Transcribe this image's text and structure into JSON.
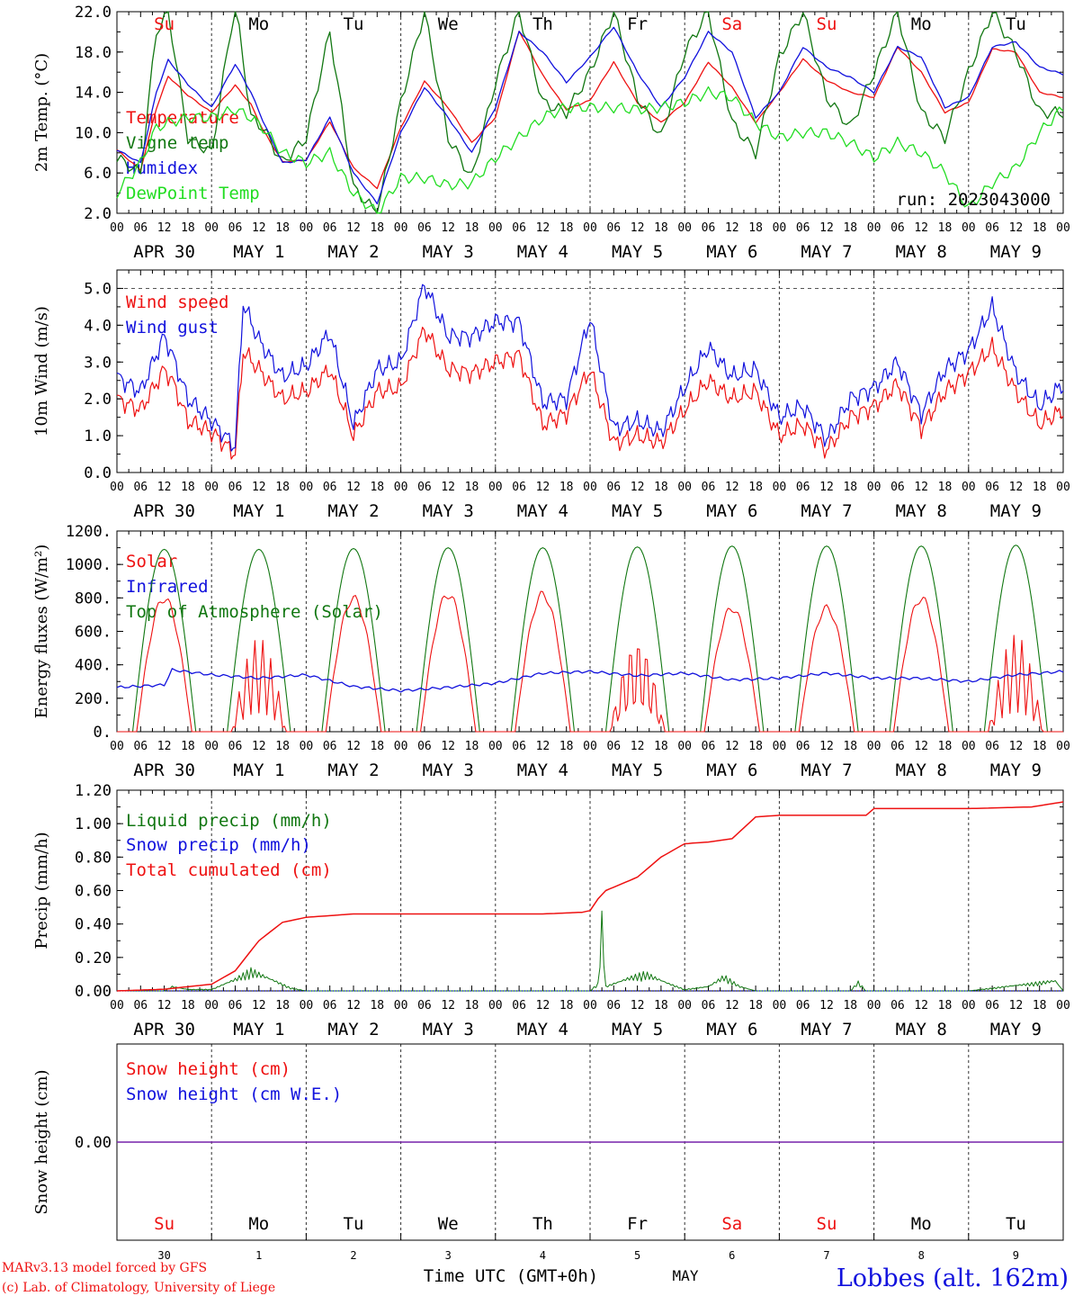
{
  "colors": {
    "temperature": "#ee1111",
    "vigne": "#117711",
    "humidex": "#1111dd",
    "dewpoint": "#22dd22",
    "wind_speed": "#ee1111",
    "wind_gust": "#1111dd",
    "solar": "#ee1111",
    "infrared": "#1111dd",
    "toa": "#117711",
    "liquid": "#117711",
    "snow": "#1111dd",
    "cumulated": "#ee1111",
    "snow_height": "#ee1111",
    "snow_we": "#1111dd",
    "snow_line": "#7722aa",
    "weekend": "#ee1111",
    "weekday": "#000000"
  },
  "run_label": "run: 2023043000",
  "hour_ticks": [
    "00",
    "06",
    "12",
    "18"
  ],
  "date_labels": [
    "APR 30",
    "MAY  1",
    "MAY  2",
    "MAY  3",
    "MAY  4",
    "MAY  5",
    "MAY  6",
    "MAY  7",
    "MAY  8",
    "MAY  9"
  ],
  "weekdays": [
    {
      "label": "Su",
      "weekend": true
    },
    {
      "label": "Mo",
      "weekend": false
    },
    {
      "label": "Tu",
      "weekend": false
    },
    {
      "label": "We",
      "weekend": false
    },
    {
      "label": "Th",
      "weekend": false
    },
    {
      "label": "Fr",
      "weekend": false
    },
    {
      "label": "Sa",
      "weekend": true
    },
    {
      "label": "Su",
      "weekend": true
    },
    {
      "label": "Mo",
      "weekend": false
    },
    {
      "label": "Tu",
      "weekend": false
    }
  ],
  "day_numbers": [
    "30",
    "1",
    "2",
    "3",
    "4",
    "5",
    "6",
    "7",
    "8",
    "9"
  ],
  "month_label": "MAY",
  "xaxis_title": "Time UTC (GMT+0h)",
  "credit_line1": "MARv3.13 model forced by GFS",
  "credit_line2": "(c) Lab. of Climatology, University of Liege",
  "station_label": "Lobbes (alt. 162m)",
  "chart_data": [
    {
      "type": "line",
      "ylabel": "2m Temp. (°C)",
      "ylim": [
        2,
        22
      ],
      "yticks": [
        "2.0",
        "6.0",
        "10.0",
        "14.0",
        "18.0",
        "22.0"
      ],
      "legend_placement": "top-left",
      "x_unit": "hours since 2023-04-30 00 UTC",
      "series": [
        {
          "name": "Temperature",
          "key": "temperature",
          "x": [
            0,
            6,
            10,
            13,
            18,
            24,
            30,
            34,
            37,
            42,
            48,
            54,
            60,
            66,
            72,
            78,
            84,
            90,
            96,
            102,
            108,
            114,
            120,
            126,
            132,
            138,
            144,
            150,
            156,
            162,
            168,
            174,
            180,
            186,
            192,
            198,
            204,
            210,
            216,
            222,
            228,
            234,
            240
          ],
          "values": [
            8.3,
            6.3,
            12.4,
            15.6,
            13.7,
            12.0,
            14.7,
            12.8,
            10.3,
            7.1,
            7.3,
            11.1,
            6.5,
            4.5,
            10.5,
            15.1,
            12.5,
            9.0,
            11.5,
            20.1,
            15.7,
            12.3,
            13.2,
            17.0,
            13.0,
            11.0,
            13.0,
            17.0,
            14.5,
            11.0,
            14.0,
            17.3,
            15.2,
            14.0,
            13.5,
            18.5,
            16.0,
            12.0,
            13.0,
            18.3,
            18.0,
            14.0,
            13.5
          ]
        },
        {
          "name": "Vigne temp",
          "key": "vigne",
          "x": [
            0,
            6,
            10,
            13,
            18,
            24,
            30,
            34,
            37,
            42,
            48,
            54,
            60,
            66,
            72,
            78,
            84,
            90,
            96,
            102,
            108,
            114,
            120,
            126,
            132,
            138,
            144,
            150,
            156,
            162,
            168,
            174,
            180,
            186,
            192,
            198,
            204,
            210,
            216,
            222,
            228,
            234,
            240
          ],
          "values": [
            7.5,
            6.0,
            20.0,
            22.0,
            9.5,
            8.0,
            23.0,
            11.5,
            10.5,
            7.0,
            9.5,
            20.0,
            4.5,
            2.0,
            13.0,
            22.0,
            9.5,
            5.5,
            15.0,
            22.0,
            13.0,
            12.0,
            16.0,
            22.0,
            13.5,
            9.5,
            18.0,
            22.0,
            11.0,
            8.0,
            17.5,
            22.0,
            13.5,
            10.5,
            16.0,
            22.0,
            12.0,
            9.5,
            16.0,
            22.0,
            18.0,
            12.0,
            12.0
          ]
        },
        {
          "name": "Humidex",
          "key": "humidex",
          "x": [
            0,
            6,
            10,
            13,
            18,
            24,
            30,
            34,
            37,
            42,
            48,
            54,
            60,
            66,
            72,
            78,
            84,
            90,
            96,
            102,
            108,
            114,
            120,
            126,
            132,
            138,
            144,
            150,
            156,
            162,
            168,
            174,
            180,
            186,
            192,
            198,
            204,
            210,
            216,
            222,
            228,
            234,
            240
          ],
          "values": [
            8.3,
            7.0,
            14.0,
            17.2,
            14.8,
            12.5,
            16.8,
            14.0,
            11.2,
            7.0,
            7.3,
            11.5,
            6.0,
            3.0,
            10.0,
            14.5,
            11.5,
            8.0,
            12.5,
            20.0,
            18.0,
            15.0,
            17.5,
            20.5,
            16.0,
            12.5,
            15.5,
            20.0,
            18.0,
            11.5,
            14.0,
            18.5,
            16.5,
            15.5,
            14.0,
            18.5,
            17.5,
            12.5,
            13.5,
            18.5,
            19.0,
            16.5,
            15.8
          ]
        },
        {
          "name": "DewPoint Temp",
          "key": "dewpoint",
          "x": [
            0,
            6,
            10,
            13,
            18,
            24,
            30,
            34,
            37,
            42,
            48,
            54,
            60,
            66,
            72,
            78,
            84,
            90,
            96,
            102,
            108,
            114,
            120,
            126,
            132,
            138,
            144,
            150,
            156,
            162,
            168,
            174,
            180,
            186,
            192,
            198,
            204,
            210,
            216,
            222,
            228,
            234,
            240
          ],
          "values": [
            4.0,
            7.0,
            10.5,
            11.0,
            11.5,
            11.5,
            12.3,
            11.5,
            10.5,
            8.0,
            7.0,
            8.0,
            4.0,
            2.0,
            5.5,
            5.5,
            4.8,
            5.0,
            7.5,
            9.5,
            11.5,
            12.5,
            12.5,
            12.5,
            12.3,
            12.5,
            13.0,
            14.0,
            13.5,
            11.0,
            9.5,
            10.0,
            10.0,
            9.0,
            7.5,
            9.0,
            8.0,
            6.0,
            2.5,
            5.0,
            6.5,
            10.0,
            12.5
          ]
        }
      ]
    },
    {
      "type": "line",
      "ylabel": "10m Wind (m/s)",
      "ylim": [
        0,
        5.5
      ],
      "yticks": [
        "0.0",
        "1.0",
        "2.0",
        "3.0",
        "4.0",
        "5.0"
      ],
      "legend_placement": "top-left",
      "x_unit": "hours since 2023-04-30 00 UTC",
      "series": [
        {
          "name": "Wind speed",
          "key": "wind_speed",
          "x": [
            0,
            6,
            12,
            14,
            18,
            24,
            30,
            32,
            36,
            42,
            48,
            54,
            60,
            66,
            72,
            78,
            84,
            90,
            96,
            102,
            108,
            114,
            120,
            126,
            132,
            138,
            144,
            150,
            156,
            162,
            168,
            174,
            180,
            186,
            192,
            198,
            204,
            210,
            216,
            222,
            228,
            234,
            240
          ],
          "values": [
            2.0,
            1.7,
            2.8,
            2.5,
            1.4,
            1.1,
            0.5,
            3.3,
            2.8,
            2.0,
            2.2,
            2.8,
            1.0,
            2.2,
            2.3,
            3.9,
            2.8,
            2.7,
            3.0,
            3.2,
            1.3,
            1.6,
            2.8,
            0.8,
            1.0,
            0.8,
            1.7,
            2.5,
            2.0,
            2.2,
            1.0,
            1.3,
            0.6,
            1.5,
            1.8,
            2.4,
            1.2,
            2.2,
            2.7,
            3.4,
            2.2,
            1.3,
            1.7
          ]
        },
        {
          "name": "Wind gust",
          "key": "wind_gust",
          "x": [
            0,
            6,
            12,
            14,
            18,
            24,
            30,
            32,
            36,
            42,
            48,
            54,
            60,
            66,
            72,
            78,
            84,
            90,
            96,
            102,
            108,
            114,
            120,
            126,
            132,
            138,
            144,
            150,
            156,
            162,
            168,
            174,
            180,
            186,
            192,
            198,
            204,
            210,
            216,
            222,
            228,
            234,
            240
          ],
          "values": [
            2.6,
            2.2,
            3.7,
            3.2,
            2.0,
            1.4,
            0.7,
            4.6,
            3.6,
            2.6,
            2.9,
            3.8,
            1.3,
            2.8,
            3.0,
            5.1,
            3.7,
            3.7,
            4.1,
            4.1,
            1.9,
            2.0,
            4.2,
            1.2,
            1.4,
            1.1,
            2.3,
            3.4,
            2.6,
            2.8,
            1.5,
            1.8,
            0.9,
            2.0,
            2.3,
            3.0,
            1.6,
            2.8,
            3.3,
            4.5,
            2.7,
            1.8,
            2.4
          ]
        }
      ]
    },
    {
      "type": "line",
      "ylabel": "Energy fluxes (W/m²)",
      "ylim": [
        0,
        1200
      ],
      "yticks": [
        "0.",
        "200.",
        "400.",
        "600.",
        "800.",
        "1000.",
        "1200."
      ],
      "legend_placement": "top-left",
      "x_unit": "hours since 2023-04-30 00 UTC",
      "toa_peak": [
        1090,
        1090,
        1095,
        1100,
        1100,
        1105,
        1110,
        1110,
        1110,
        1115
      ],
      "solar_peak": [
        820,
        560,
        820,
        845,
        845,
        560,
        760,
        760,
        820,
        580
      ],
      "infrared": {
        "x": [
          0,
          12,
          14,
          24,
          36,
          48,
          60,
          72,
          84,
          96,
          108,
          120,
          132,
          144,
          156,
          168,
          180,
          192,
          204,
          216,
          228,
          240
        ],
        "values": [
          265,
          280,
          370,
          340,
          320,
          340,
          270,
          245,
          265,
          290,
          350,
          360,
          335,
          350,
          310,
          320,
          350,
          320,
          320,
          300,
          340,
          360
        ]
      },
      "series": [
        {
          "name": "Solar",
          "key": "solar"
        },
        {
          "name": "Infrared",
          "key": "infrared"
        },
        {
          "name": "Top of Atmosphere (Solar)",
          "key": "toa"
        }
      ]
    },
    {
      "type": "line",
      "ylabel": "Precip (mm/h)",
      "ylim": [
        0,
        1.2
      ],
      "yticks": [
        "0.00",
        "0.20",
        "0.40",
        "0.60",
        "0.80",
        "1.00",
        "1.20"
      ],
      "legend_placement": "top-left",
      "x_unit": "hours since 2023-04-30 00 UTC",
      "series": [
        {
          "name": "Liquid precip (mm/h)",
          "key": "liquid",
          "x": [
            0,
            12,
            14,
            18,
            24,
            30,
            34,
            40,
            44,
            48,
            120,
            122,
            123,
            124,
            130,
            134,
            140,
            144,
            150,
            154,
            158,
            162,
            168,
            186,
            188,
            190,
            216,
            238,
            240
          ],
          "values": [
            0,
            0,
            0.03,
            0.01,
            0.01,
            0.08,
            0.14,
            0.07,
            0.02,
            0,
            0,
            0.05,
            0.48,
            0.03,
            0.09,
            0.12,
            0.05,
            0.01,
            0.03,
            0.1,
            0.03,
            0,
            0,
            0,
            0.06,
            0,
            0,
            0.07,
            0
          ]
        },
        {
          "name": "Snow precip (mm/h)",
          "key": "snow",
          "x": [
            0,
            240
          ],
          "values": [
            0,
            0
          ]
        },
        {
          "name": "Total cumulated (cm)",
          "key": "cumulated",
          "x": [
            0,
            12,
            24,
            30,
            36,
            42,
            48,
            54,
            60,
            72,
            96,
            108,
            118,
            120,
            122,
            124,
            126,
            132,
            138,
            144,
            150,
            156,
            162,
            168,
            190,
            192,
            216,
            232,
            240
          ],
          "values": [
            0,
            0.01,
            0.04,
            0.12,
            0.3,
            0.41,
            0.44,
            0.45,
            0.46,
            0.46,
            0.46,
            0.46,
            0.47,
            0.48,
            0.55,
            0.6,
            0.62,
            0.68,
            0.8,
            0.88,
            0.89,
            0.91,
            1.04,
            1.05,
            1.05,
            1.09,
            1.09,
            1.1,
            1.13
          ]
        }
      ]
    },
    {
      "type": "line",
      "ylabel": "Snow height (cm)",
      "yticks": [
        "0.00"
      ],
      "legend_placement": "top-left",
      "x_unit": "hours since 2023-04-30 00 UTC",
      "series": [
        {
          "name": "Snow height (cm)",
          "key": "snow_height",
          "x": [
            0,
            240
          ],
          "values": [
            0,
            0
          ]
        },
        {
          "name": "Snow height (cm W.E.)",
          "key": "snow_we",
          "x": [
            0,
            240
          ],
          "values": [
            0,
            0
          ]
        }
      ]
    }
  ]
}
